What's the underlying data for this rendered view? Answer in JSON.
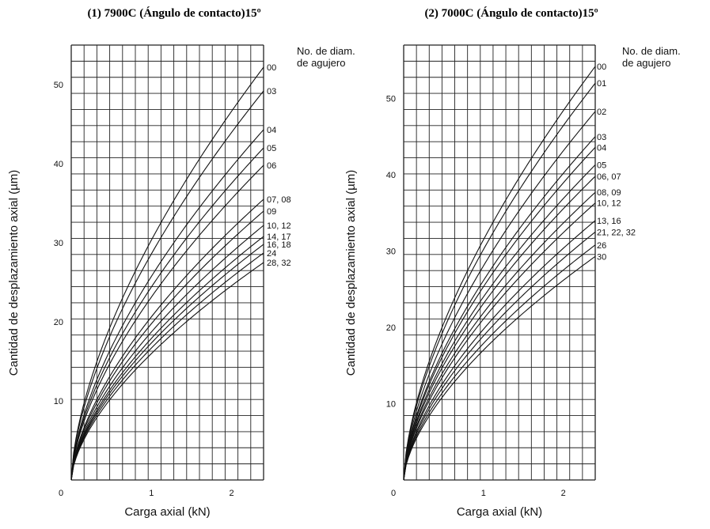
{
  "chart_data": [
    {
      "type": "line",
      "title": "(1) 7900C (Ángulo de contacto)15º",
      "xlabel": "Carga axial (kN)",
      "ylabel": "Cantidad de desplazamiento axial (µm)",
      "xlim": [
        0,
        2.4
      ],
      "ylim": [
        0,
        55
      ],
      "x_ticks": [
        "1",
        "2"
      ],
      "y_ticks": [
        "10",
        "20",
        "30",
        "40",
        "50"
      ],
      "origin_label": "0",
      "grid": true,
      "legend_title": [
        "No. de diam.",
        "de agujero"
      ],
      "series": [
        {
          "name": "00",
          "x": [
            0,
            2.4
          ],
          "y": [
            0,
            52.2
          ]
        },
        {
          "name": "03",
          "x": [
            0,
            2.4
          ],
          "y": [
            0,
            49.2
          ]
        },
        {
          "name": "04",
          "x": [
            0,
            2.4
          ],
          "y": [
            0,
            44.3
          ]
        },
        {
          "name": "05",
          "x": [
            0,
            2.4
          ],
          "y": [
            0,
            42.0
          ]
        },
        {
          "name": "06",
          "x": [
            0,
            2.4
          ],
          "y": [
            0,
            39.8
          ]
        },
        {
          "name": "07, 08",
          "x": [
            0,
            2.4
          ],
          "y": [
            0,
            35.5
          ]
        },
        {
          "name": "09",
          "x": [
            0,
            2.4
          ],
          "y": [
            0,
            34.0
          ]
        },
        {
          "name": "10, 12",
          "x": [
            0,
            2.4
          ],
          "y": [
            0,
            32.2
          ]
        },
        {
          "name": "14, 17",
          "x": [
            0,
            2.4
          ],
          "y": [
            0,
            30.8
          ]
        },
        {
          "name": "16, 18",
          "x": [
            0,
            2.4
          ],
          "y": [
            0,
            29.8
          ]
        },
        {
          "name": "24",
          "x": [
            0,
            2.4
          ],
          "y": [
            0,
            28.7
          ]
        },
        {
          "name": "28, 32",
          "x": [
            0,
            2.4
          ],
          "y": [
            0,
            27.5
          ]
        }
      ]
    },
    {
      "type": "line",
      "title": "(2) 7000C (Ángulo de contacto)15º",
      "xlabel": "Carga axial (kN)",
      "ylabel": "Cantidad de desplazamiento axial (µm)",
      "xlim": [
        0,
        2.4
      ],
      "ylim": [
        0,
        57
      ],
      "x_ticks": [
        "1",
        "2"
      ],
      "y_ticks": [
        "10",
        "20",
        "30",
        "40",
        "50"
      ],
      "origin_label": "0",
      "grid": true,
      "legend_title": [
        "No. de diam.",
        "de agujero"
      ],
      "series": [
        {
          "name": "00",
          "x": [
            0,
            2.4
          ],
          "y": [
            0,
            54.2
          ]
        },
        {
          "name": "01",
          "x": [
            0,
            2.4
          ],
          "y": [
            0,
            52.0
          ]
        },
        {
          "name": "02",
          "x": [
            0,
            2.4
          ],
          "y": [
            0,
            48.3
          ]
        },
        {
          "name": "03",
          "x": [
            0,
            2.4
          ],
          "y": [
            0,
            45.0
          ]
        },
        {
          "name": "04",
          "x": [
            0,
            2.4
          ],
          "y": [
            0,
            43.6
          ]
        },
        {
          "name": "05",
          "x": [
            0,
            2.4
          ],
          "y": [
            0,
            41.3
          ]
        },
        {
          "name": "06, 07",
          "x": [
            0,
            2.4
          ],
          "y": [
            0,
            39.8
          ]
        },
        {
          "name": "08, 09",
          "x": [
            0,
            2.4
          ],
          "y": [
            0,
            37.7
          ]
        },
        {
          "name": "10, 12",
          "x": [
            0,
            2.4
          ],
          "y": [
            0,
            36.3
          ]
        },
        {
          "name": "13, 16",
          "x": [
            0,
            2.4
          ],
          "y": [
            0,
            34.0
          ]
        },
        {
          "name": "21, 22, 32",
          "x": [
            0,
            2.4
          ],
          "y": [
            0,
            32.5
          ]
        },
        {
          "name": "26",
          "x": [
            0,
            2.4
          ],
          "y": [
            0,
            30.8
          ]
        },
        {
          "name": "30",
          "x": [
            0,
            2.4
          ],
          "y": [
            0,
            29.3
          ]
        }
      ]
    }
  ]
}
